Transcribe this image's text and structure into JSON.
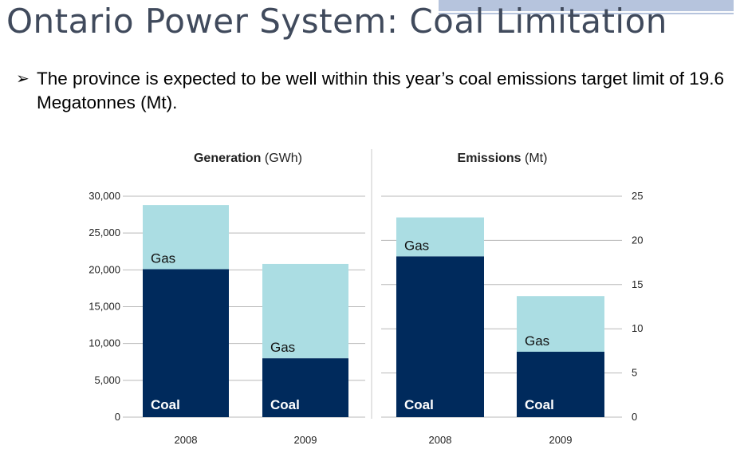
{
  "slide": {
    "title": "Ontario Power System: Coal Limitation",
    "bullet": "The province is expected to be well within this year’s coal emissions target limit of 19.6 Megatonnes (Mt)."
  },
  "colors": {
    "coal": "#002a5c",
    "gas": "#abdde3",
    "title_accent": "#b6c4dd",
    "title_text": "#404a5c"
  },
  "chart_data": [
    {
      "type": "bar",
      "stacked": true,
      "title": "Generation",
      "unit": "(GWh)",
      "categories": [
        "2008",
        "2009"
      ],
      "series": [
        {
          "name": "Coal",
          "values": [
            20100,
            8000
          ]
        },
        {
          "name": "Gas",
          "values": [
            8700,
            12800
          ]
        }
      ],
      "ylim": [
        0,
        30000
      ],
      "yticks": [
        0,
        5000,
        10000,
        15000,
        20000,
        25000,
        30000
      ],
      "ytick_labels": [
        "0",
        "5,000",
        "10,000",
        "15,000",
        "20,000",
        "25,000",
        "30,000"
      ],
      "axis_position": "left",
      "grid": true
    },
    {
      "type": "bar",
      "stacked": true,
      "title": "Emissions",
      "unit": "(Mt)",
      "categories": [
        "2008",
        "2009"
      ],
      "series": [
        {
          "name": "Coal",
          "values": [
            18.2,
            7.4
          ]
        },
        {
          "name": "Gas",
          "values": [
            4.4,
            6.3
          ]
        }
      ],
      "ylim": [
        0,
        25
      ],
      "yticks": [
        0,
        5,
        10,
        15,
        20,
        25
      ],
      "ytick_labels": [
        "0",
        "5",
        "10",
        "15",
        "20",
        "25"
      ],
      "axis_position": "right",
      "grid": true
    }
  ]
}
